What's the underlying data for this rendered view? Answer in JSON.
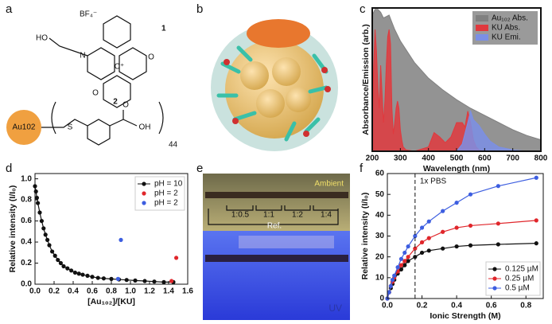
{
  "panel_labels": [
    "a",
    "b",
    "c",
    "d",
    "e",
    "f"
  ],
  "panel_a": {
    "counterion": "BF₄⁻",
    "compound_1": "1",
    "hydroxyl": "HO",
    "nitrogen": "N",
    "oxygen_right": "O",
    "carbocation": "C⁺",
    "oxygen_bottom": "O",
    "compound_2": "2",
    "cluster": "Au102",
    "sulfur": "S",
    "carbonyl_o": "O",
    "acid_oh": "OH",
    "count": "44"
  },
  "panel_e": {
    "top_label": "Ambient",
    "bottom_label": "UV",
    "ratios": [
      "1:0.5",
      "1:1",
      "1:2",
      "1:4"
    ],
    "reference": "Ref."
  },
  "chart_data": [
    {
      "type": "area",
      "x_label": "Wavelength (nm)",
      "y_label": "Absorbance/Emission (arb.)",
      "xlim": [
        200,
        800
      ],
      "xticks": [
        200,
        300,
        400,
        500,
        600,
        700,
        800
      ],
      "ylim": [
        0,
        1
      ],
      "legend": "upper right",
      "series": [
        {
          "name": "Au₁₀₂ Abs.",
          "color": "#808080",
          "x": [
            200,
            210,
            220,
            230,
            240,
            250,
            260,
            270,
            280,
            300,
            350,
            400,
            450,
            500,
            550,
            600,
            650,
            700,
            750,
            800
          ],
          "values": [
            0.95,
            0.99,
            0.99,
            0.97,
            0.93,
            0.94,
            0.95,
            0.9,
            0.85,
            0.77,
            0.62,
            0.51,
            0.43,
            0.36,
            0.3,
            0.25,
            0.2,
            0.15,
            0.11,
            0.08
          ]
        },
        {
          "name": "KU Abs.",
          "color": "#e0393e",
          "x": [
            200,
            205,
            210,
            215,
            220,
            225,
            230,
            235,
            240,
            245,
            250,
            255,
            260,
            265,
            270,
            275,
            280,
            285,
            290,
            295,
            300,
            305,
            310,
            320,
            350,
            400,
            420,
            440,
            460,
            480,
            500,
            520,
            530,
            540,
            550,
            560,
            570,
            580,
            600
          ],
          "values": [
            0.2,
            0.6,
            0.85,
            0.7,
            0.45,
            0.3,
            0.6,
            0.4,
            0.2,
            0.35,
            0.6,
            0.8,
            0.85,
            0.75,
            0.3,
            0.12,
            0.2,
            0.3,
            0.35,
            0.3,
            0.15,
            0.08,
            0.03,
            0.01,
            0,
            0.03,
            0.13,
            0.1,
            0.06,
            0.1,
            0.2,
            0.2,
            0.17,
            0.28,
            0.2,
            0.08,
            0.03,
            0.01,
            0
          ]
        },
        {
          "name": "KU Emi.",
          "color": "#7b8fe6",
          "x": [
            500,
            520,
            540,
            550,
            560,
            580,
            600,
            620,
            650,
            700,
            750
          ],
          "values": [
            0,
            0.05,
            0.2,
            0.28,
            0.22,
            0.18,
            0.12,
            0.07,
            0.03,
            0.01,
            0
          ]
        }
      ]
    },
    {
      "type": "scatter",
      "x_label": "[Au₁₀₂]/[KU]",
      "y_label": "Relative intensity (I/I₀)",
      "xlim": [
        0,
        1.6
      ],
      "xticks": [
        {
          "value": 0,
          "label": "0.0"
        },
        0.2,
        0.4,
        0.6,
        0.8,
        {
          "value": 1,
          "label": "1.0"
        },
        1.2,
        1.4,
        1.6
      ],
      "ylim": [
        0,
        1.05
      ],
      "yticks": [
        {
          "value": 0,
          "label": "0.0"
        },
        0.2,
        0.4,
        0.6,
        0.8,
        {
          "value": 1,
          "label": "1.0"
        }
      ],
      "legend": "upper right",
      "series": [
        {
          "name": "pH = 10",
          "color": "#111111",
          "connect": true,
          "x": [
            0,
            0.01,
            0.02,
            0.03,
            0.05,
            0.07,
            0.09,
            0.11,
            0.13,
            0.15,
            0.18,
            0.21,
            0.24,
            0.27,
            0.3,
            0.34,
            0.38,
            0.42,
            0.46,
            0.5,
            0.55,
            0.6,
            0.66,
            0.72,
            0.8,
            0.88,
            0.96,
            1.05,
            1.15,
            1.25,
            1.35,
            1.45
          ],
          "values": [
            0.93,
            0.88,
            0.82,
            0.77,
            0.68,
            0.6,
            0.53,
            0.47,
            0.42,
            0.37,
            0.31,
            0.27,
            0.23,
            0.2,
            0.17,
            0.15,
            0.13,
            0.11,
            0.1,
            0.09,
            0.08,
            0.07,
            0.06,
            0.055,
            0.05,
            0.045,
            0.04,
            0.035,
            0.03,
            0.025,
            0.02,
            0.02
          ]
        },
        {
          "name": "pH = 2",
          "color": "#e0262b",
          "x": [
            1.43,
            1.48
          ],
          "values": [
            0.03,
            0.25
          ]
        },
        {
          "name": "pH = 2",
          "color": "#3d5ee0",
          "x": [
            0.87,
            0.9
          ],
          "values": [
            0.05,
            0.42
          ]
        }
      ]
    },
    {
      "type": "line",
      "x_label": "Ionic Strength (M)",
      "y_label": "Relative intensity (I/I₀)",
      "xlim": [
        0,
        0.9
      ],
      "xticks": [
        {
          "value": 0,
          "label": "0.0"
        },
        0.2,
        0.4,
        0.6,
        0.8
      ],
      "ylim": [
        0,
        60
      ],
      "yticks": [
        0,
        10,
        20,
        30,
        40,
        50,
        60
      ],
      "legend": "lower right",
      "vline": {
        "x": 0.16,
        "label": "1x PBS"
      },
      "x": [
        0,
        0.01,
        0.02,
        0.03,
        0.04,
        0.06,
        0.08,
        0.1,
        0.12,
        0.16,
        0.2,
        0.24,
        0.32,
        0.4,
        0.48,
        0.64,
        0.86
      ],
      "series": [
        {
          "name": "0.125 µM",
          "color": "#111111",
          "values": [
            0,
            3,
            5,
            7,
            9,
            12,
            14,
            16,
            18,
            20,
            22,
            23,
            24,
            25,
            25.5,
            26,
            26.5
          ]
        },
        {
          "name": "0.25 µM",
          "color": "#e0262b",
          "values": [
            0,
            3,
            6,
            8,
            10,
            13,
            16,
            18,
            20,
            24,
            27,
            29,
            32,
            34,
            35,
            36,
            37.5
          ]
        },
        {
          "name": "0.5 µM",
          "color": "#3d5ee0",
          "values": [
            0,
            3,
            6,
            9,
            11,
            15,
            19,
            22,
            25,
            30,
            34,
            37,
            42,
            46,
            50,
            54,
            58
          ]
        }
      ]
    }
  ]
}
